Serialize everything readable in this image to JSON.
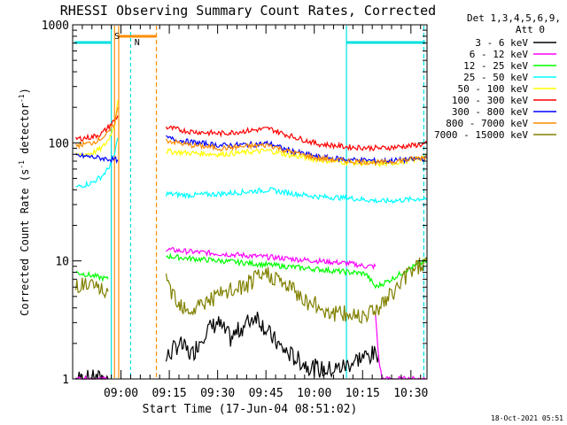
{
  "chart_data": {
    "type": "line",
    "title": "RHESSI Observing Summary Count Rates, Corrected",
    "xlabel": "Start Time (17-Jun-04 08:51:02)",
    "ylabel_main": "Corrected Count Rate (s",
    "ylabel_exp1": "-1",
    "ylabel_mid": " detector",
    "ylabel_exp2": "-1",
    "ylabel_end": ")",
    "y_scale": "log",
    "ylim": [
      1,
      1000
    ],
    "xlim_minutes": [
      -6,
      104
    ],
    "x_ticks": [
      {
        "label": "09:00",
        "min": 9
      },
      {
        "label": "09:15",
        "min": 24
      },
      {
        "label": "09:30",
        "min": 39
      },
      {
        "label": "09:45",
        "min": 54
      },
      {
        "label": "10:00",
        "min": 69
      },
      {
        "label": "10:15",
        "min": 84
      },
      {
        "label": "10:30",
        "min": 99
      }
    ],
    "y_ticks": [
      {
        "label": "1",
        "value": 1
      },
      {
        "label": "10",
        "value": 10
      },
      {
        "label": "100",
        "value": 100
      },
      {
        "label": "1000",
        "value": 1000
      }
    ],
    "legend": {
      "header1": "Det 1,3,4,5,6,9,",
      "header2": "Att 0",
      "placement": "right"
    },
    "series": [
      {
        "name": "3 - 6 keV",
        "color": "#000000",
        "segments": [
          {
            "x": [
              -5,
              5
            ],
            "y": [
              1,
              1
            ]
          },
          {
            "x": [
              23,
              27,
              31,
              35,
              39,
              43,
              47,
              51,
              55,
              59,
              63,
              67,
              71,
              75,
              79,
              83,
              87,
              89
            ],
            "y": [
              1.5,
              2.0,
              1.6,
              2.5,
              3.0,
              2.2,
              2.8,
              3.5,
              2.4,
              1.8,
              1.5,
              1.3,
              1.2,
              1.2,
              1.3,
              1.5,
              1.6,
              1.6
            ]
          }
        ]
      },
      {
        "name": "6 - 12 keV",
        "color": "#ff00ff",
        "segments": [
          {
            "x": [
              -5,
              5
            ],
            "y": [
              1,
              1
            ]
          },
          {
            "x": [
              23,
              30,
              40,
              50,
              60,
              70,
              80,
              85,
              88
            ],
            "y": [
              12.5,
              12.0,
              11.5,
              11.0,
              10.5,
              10.0,
              9.5,
              9.0,
              9.0
            ]
          },
          {
            "x": [
              88,
              89,
              90,
              92,
              104
            ],
            "y": [
              3.5,
              1.5,
              1.0,
              1.0,
              1.0
            ]
          }
        ]
      },
      {
        "name": "12 - 25 keV",
        "color": "#00ff00",
        "segments": [
          {
            "x": [
              -5,
              0,
              5
            ],
            "y": [
              8.0,
              7.5,
              7.0
            ]
          },
          {
            "x": [
              23,
              30,
              40,
              50,
              60,
              70,
              80,
              85,
              88,
              93,
              98,
              104
            ],
            "y": [
              11.0,
              10.5,
              10.0,
              9.5,
              9.0,
              8.5,
              8.0,
              7.8,
              6.0,
              7.0,
              8.5,
              10.0
            ]
          }
        ]
      },
      {
        "name": "25 - 50 keV",
        "color": "#00ffff",
        "segments": [
          {
            "x": [
              -5,
              0,
              3,
              5,
              7,
              8
            ],
            "y": [
              42,
              46,
              52,
              60,
              80,
              110
            ]
          },
          {
            "x": [
              23,
              30,
              40,
              50,
              55,
              60,
              70,
              80,
              90,
              98,
              104
            ],
            "y": [
              37,
              36,
              37,
              39,
              40,
              38,
              35,
              34,
              32,
              33,
              34
            ]
          }
        ]
      },
      {
        "name": "50 - 100 keV",
        "color": "#ffff00",
        "segments": [
          {
            "x": [
              -5,
              0,
              3,
              5,
              7,
              8
            ],
            "y": [
              78,
              82,
              90,
              105,
              140,
              230
            ]
          },
          {
            "x": [
              23,
              30,
              40,
              50,
              55,
              60,
              70,
              80,
              90,
              98,
              104
            ],
            "y": [
              85,
              82,
              80,
              84,
              86,
              80,
              72,
              68,
              66,
              70,
              76
            ]
          }
        ]
      },
      {
        "name": "100 - 300 keV",
        "color": "#ff0000",
        "segments": [
          {
            "x": [
              -5,
              0,
              3,
              5,
              7,
              8
            ],
            "y": [
              108,
              112,
              120,
              135,
              155,
              170
            ]
          },
          {
            "x": [
              23,
              30,
              40,
              50,
              55,
              60,
              70,
              80,
              90,
              98,
              104
            ],
            "y": [
              135,
              125,
              120,
              128,
              132,
              118,
              98,
              92,
              90,
              94,
              98
            ]
          }
        ]
      },
      {
        "name": "300 - 800 keV",
        "color": "#0000ff",
        "segments": [
          {
            "x": [
              -5,
              0,
              3,
              5,
              7,
              8
            ],
            "y": [
              78,
              76,
              74,
              73,
              72,
              72
            ]
          },
          {
            "x": [
              23,
              30,
              40,
              50,
              55,
              60,
              70,
              80,
              90,
              98,
              104
            ],
            "y": [
              110,
              102,
              95,
              97,
              99,
              88,
              76,
              72,
              70,
              72,
              74
            ]
          }
        ]
      },
      {
        "name": "800 - 7000 keV",
        "color": "#ff8c00",
        "segments": [
          {
            "x": [
              -5,
              0,
              3,
              5,
              7,
              8
            ],
            "y": [
              95,
              100,
              110,
              120,
              145,
              200
            ]
          },
          {
            "x": [
              23,
              30,
              40,
              50,
              55,
              60,
              70,
              80,
              90,
              98,
              104
            ],
            "y": [
              105,
              96,
              90,
              94,
              96,
              86,
              74,
              70,
              68,
              72,
              76
            ]
          }
        ]
      },
      {
        "name": "7000 - 15000 keV",
        "color": "#808000",
        "segments": [
          {
            "x": [
              -5,
              0,
              5
            ],
            "y": [
              6.5,
              6.0,
              5.5
            ]
          },
          {
            "x": [
              23,
              27,
              31,
              35,
              39,
              43,
              47,
              51,
              55,
              59,
              63,
              67,
              71,
              75,
              79,
              83,
              87,
              91,
              95,
              99,
              104
            ],
            "y": [
              6.5,
              4.5,
              3.8,
              4.5,
              5.0,
              5.5,
              6.0,
              7.0,
              7.8,
              6.5,
              5.5,
              4.5,
              4.0,
              3.6,
              3.5,
              3.5,
              3.8,
              4.5,
              6.0,
              8.5,
              10.0
            ]
          }
        ]
      }
    ],
    "flags": {
      "saa_label": "S",
      "night_label": "N",
      "saa_color": "#ff8c00",
      "night_color": "#00e0e0"
    },
    "footer_date": "18-Oct-2021 05:51"
  }
}
